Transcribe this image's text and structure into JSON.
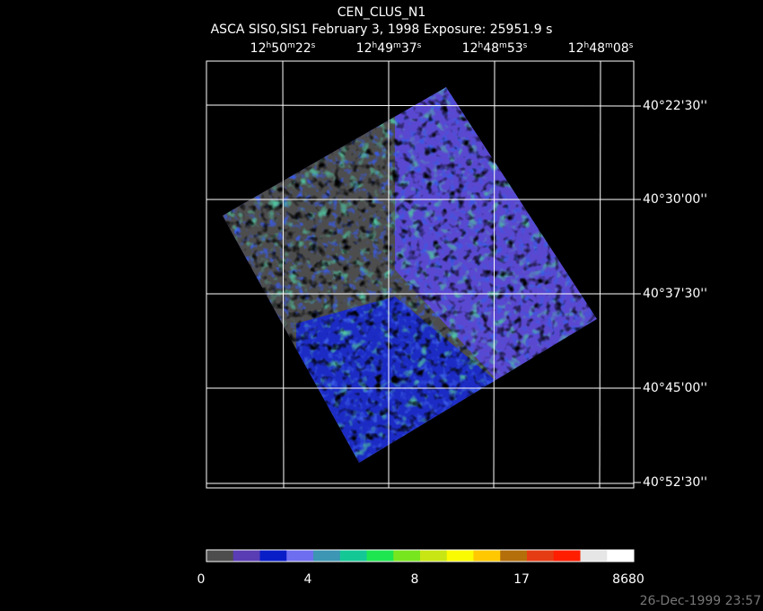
{
  "header": {
    "title": "CEN_CLUS_N1",
    "subtitle": "ASCA SIS0,SIS1 February 3, 1998 Exposure: 25951.9 s"
  },
  "ra_labels": [
    "12h50m22s",
    "12h49m37s",
    "12h48m53s",
    "12h48m08s"
  ],
  "dec_labels": [
    "40°22'30''",
    "40°30'00''",
    "40°37'30''",
    "40°45'00''",
    "40°52'30''"
  ],
  "colorbar": {
    "colors": [
      "#4d4d4d",
      "#5a3cb4",
      "#0a1ec8",
      "#6e6ef0",
      "#3c96b4",
      "#14c896",
      "#1ee650",
      "#78e61e",
      "#c8e614",
      "#fafa00",
      "#ffc800",
      "#b46e0a",
      "#e63c14",
      "#ff1e00",
      "#e6e6e6",
      "#ffffff"
    ],
    "labels": [
      "0",
      "4",
      "8",
      "17",
      "8680"
    ]
  },
  "timestamp": "26-Dec-1999 23:57"
}
